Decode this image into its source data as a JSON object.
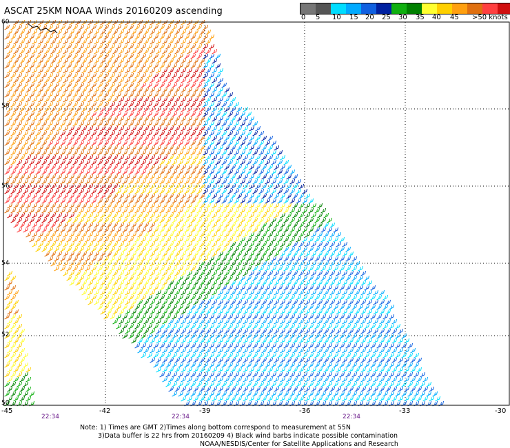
{
  "header": {
    "title": "ASCAT 25KM NOAA Winds 20160209 ascending"
  },
  "scale": {
    "colors": [
      "#777777",
      "#555555",
      "#00ddff",
      "#00aaff",
      "#1060e0",
      "#0020a0",
      "#10b010",
      "#008000",
      "#ffff30",
      "#ffd000",
      "#ffa010",
      "#e07010",
      "#ff4040",
      "#d01010",
      "#7a4020",
      "#ffd0b0",
      "#ff00ff",
      "#cc00cc",
      "#8000b0",
      "#4000a0"
    ],
    "labels": [
      "0",
      "5",
      "10",
      "15",
      "20",
      "25",
      "30",
      "35",
      "40",
      "45",
      ">50 knots"
    ]
  },
  "axes": {
    "lat_labels": [
      "60",
      "58",
      "56",
      "54",
      "52",
      "50"
    ],
    "lon_labels": [
      "-45",
      "-42",
      "-39",
      "-36",
      "-33",
      "-30"
    ]
  },
  "times": [
    "22:34",
    "22:34",
    "22:34"
  ],
  "notes": {
    "line1": "Note: 1) Times are GMT 2)Times along bottom correspond to measurement at 55N",
    "line2": "3)Data buffer is 22 hrs from 20160209 4) Black wind barbs indicate possible contamination",
    "line3": "NOAA/NESDIS/Center for Satellite Applications and Research"
  }
}
